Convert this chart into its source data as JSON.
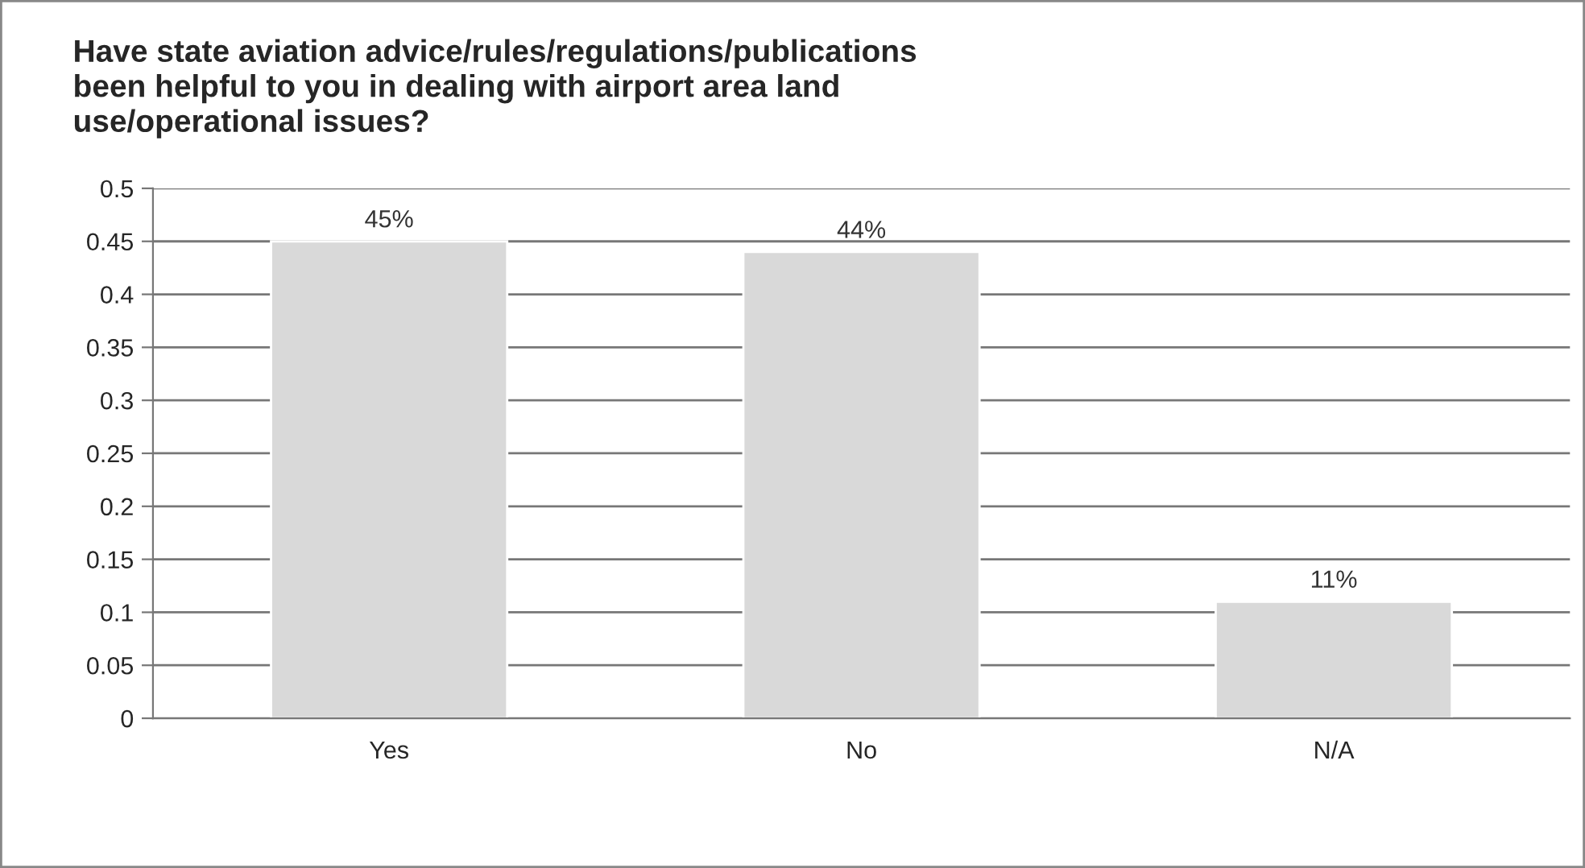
{
  "chart_data": {
    "type": "bar",
    "title": "Have state aviation advice/rules/regulations/publications\nbeen helpful to you in dealing with airport area land\nuse/operational issues?",
    "categories": [
      "Yes",
      "No",
      "N/A"
    ],
    "values": [
      0.45,
      0.44,
      0.11
    ],
    "value_labels": [
      "45%",
      "44%",
      "11%"
    ],
    "color": "#d9d9d9",
    "ylim": [
      0,
      0.5
    ],
    "yticks": [
      0,
      0.05,
      0.1,
      0.15,
      0.2,
      0.25,
      0.3,
      0.35,
      0.4,
      0.45,
      0.5
    ],
    "grid": "y",
    "legend": false
  }
}
